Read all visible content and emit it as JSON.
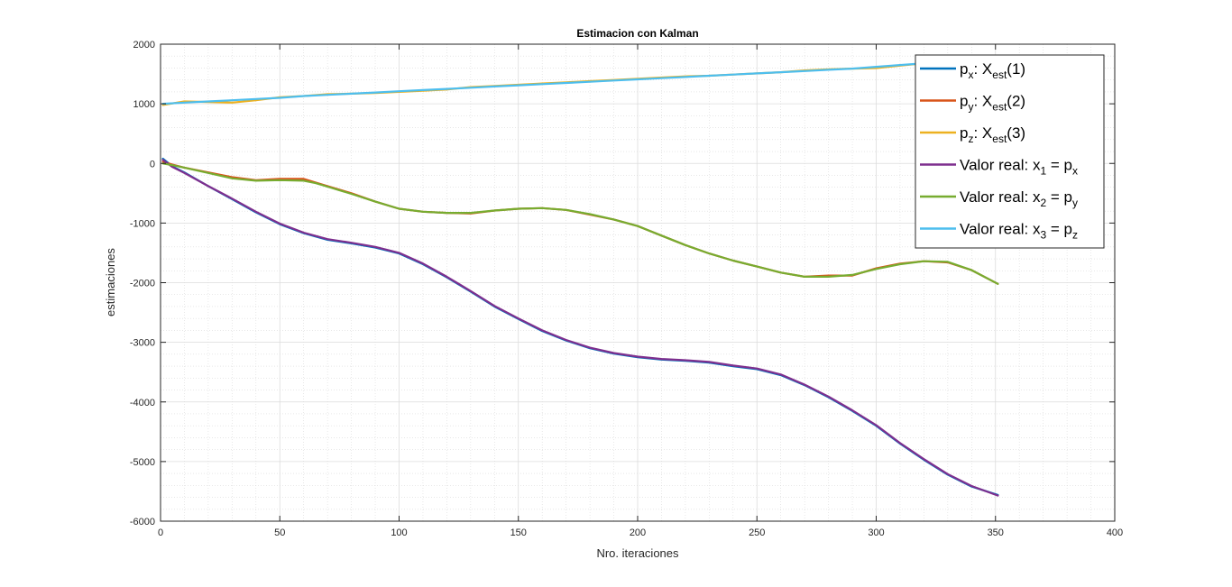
{
  "chart_data": {
    "type": "line",
    "title": "Estimacion con Kalman",
    "xlabel": "Nro. iteraciones",
    "ylabel": "estimaciones",
    "xlim": [
      0,
      400
    ],
    "ylim": [
      -6000,
      2000
    ],
    "xticks": [
      0,
      50,
      100,
      150,
      200,
      250,
      300,
      350,
      400
    ],
    "yticks": [
      -6000,
      -5000,
      -4000,
      -3000,
      -2000,
      -1000,
      0,
      1000,
      2000
    ],
    "grid": true,
    "minor_grid": true,
    "legend_position": "top-right",
    "series": [
      {
        "id": "px_est",
        "legend": {
          "main": "p",
          "sub": "x",
          "rest": ": X",
          "sub2": "est",
          "tail": "(1)"
        },
        "color": "#0072BD",
        "x": [
          1,
          5,
          10,
          20,
          30,
          40,
          50,
          60,
          70,
          80,
          90,
          100,
          110,
          120,
          130,
          140,
          150,
          160,
          170,
          180,
          190,
          200,
          210,
          220,
          230,
          240,
          250,
          260,
          270,
          280,
          290,
          300,
          310,
          320,
          330,
          340,
          351
        ],
        "y": [
          80,
          -50,
          -150,
          -380,
          -600,
          -820,
          -1020,
          -1170,
          -1280,
          -1340,
          -1410,
          -1510,
          -1690,
          -1910,
          -2150,
          -2400,
          -2610,
          -2810,
          -2970,
          -3100,
          -3190,
          -3250,
          -3290,
          -3310,
          -3340,
          -3400,
          -3450,
          -3550,
          -3720,
          -3920,
          -4150,
          -4400,
          -4700,
          -4970,
          -5220,
          -5420,
          -5560
        ]
      },
      {
        "id": "py_est",
        "legend": {
          "main": "p",
          "sub": "y",
          "rest": ": X",
          "sub2": "est",
          "tail": "(2)"
        },
        "color": "#D95319",
        "x": [
          1,
          5,
          10,
          20,
          30,
          40,
          50,
          60,
          65,
          70,
          80,
          90,
          100,
          110,
          120,
          130,
          140,
          150,
          160,
          170,
          180,
          190,
          200,
          210,
          220,
          230,
          240,
          250,
          260,
          270,
          280,
          290,
          300,
          310,
          320,
          330,
          340,
          351
        ],
        "y": [
          30,
          -20,
          -70,
          -150,
          -230,
          -280,
          -260,
          -260,
          -320,
          -380,
          -500,
          -640,
          -760,
          -810,
          -830,
          -840,
          -790,
          -760,
          -750,
          -780,
          -860,
          -940,
          -1050,
          -1210,
          -1370,
          -1510,
          -1630,
          -1730,
          -1830,
          -1900,
          -1880,
          -1880,
          -1760,
          -1680,
          -1640,
          -1660,
          -1790,
          -2020
        ]
      },
      {
        "id": "pz_est",
        "legend": {
          "main": "p",
          "sub": "z",
          "rest": ": X",
          "sub2": "est",
          "tail": "(3)"
        },
        "color": "#EDB120",
        "x": [
          1,
          10,
          20,
          30,
          40,
          50,
          60,
          70,
          80,
          90,
          100,
          110,
          120,
          130,
          140,
          150,
          160,
          170,
          180,
          190,
          200,
          210,
          220,
          230,
          240,
          250,
          260,
          270,
          280,
          290,
          300,
          310,
          320
        ],
        "y": [
          980,
          1040,
          1030,
          1020,
          1060,
          1110,
          1130,
          1160,
          1170,
          1180,
          1200,
          1220,
          1240,
          1280,
          1300,
          1320,
          1340,
          1360,
          1380,
          1400,
          1420,
          1440,
          1460,
          1470,
          1490,
          1510,
          1530,
          1560,
          1580,
          1590,
          1600,
          1640,
          1680
        ]
      },
      {
        "id": "x1_real",
        "legend": {
          "main": "Valor real: x",
          "sub": "1",
          "rest": " = p",
          "sub2": "x",
          "tail": ""
        },
        "color": "#7E2F8E",
        "x": [
          1,
          5,
          10,
          20,
          30,
          40,
          50,
          60,
          70,
          80,
          90,
          100,
          110,
          120,
          130,
          140,
          150,
          160,
          170,
          180,
          190,
          200,
          210,
          220,
          230,
          240,
          250,
          260,
          270,
          280,
          290,
          300,
          310,
          320,
          330,
          340,
          351
        ],
        "y": [
          60,
          -60,
          -160,
          -380,
          -590,
          -810,
          -1010,
          -1160,
          -1270,
          -1330,
          -1400,
          -1500,
          -1680,
          -1900,
          -2140,
          -2390,
          -2600,
          -2800,
          -2960,
          -3090,
          -3180,
          -3240,
          -3280,
          -3300,
          -3330,
          -3390,
          -3440,
          -3540,
          -3710,
          -3910,
          -4140,
          -4390,
          -4690,
          -4960,
          -5210,
          -5410,
          -5570
        ]
      },
      {
        "id": "x2_real",
        "legend": {
          "main": "Valor real: x",
          "sub": "2",
          "rest": " = p",
          "sub2": "y",
          "tail": ""
        },
        "color": "#77AC30",
        "x": [
          1,
          5,
          10,
          20,
          30,
          40,
          50,
          60,
          65,
          70,
          80,
          90,
          100,
          110,
          120,
          130,
          140,
          150,
          160,
          170,
          180,
          190,
          200,
          210,
          220,
          230,
          240,
          250,
          260,
          270,
          280,
          290,
          300,
          310,
          320,
          330,
          340,
          351
        ],
        "y": [
          0,
          -30,
          -70,
          -160,
          -250,
          -290,
          -280,
          -290,
          -330,
          -390,
          -510,
          -640,
          -760,
          -810,
          -830,
          -830,
          -790,
          -760,
          -750,
          -780,
          -850,
          -940,
          -1050,
          -1210,
          -1370,
          -1510,
          -1630,
          -1730,
          -1830,
          -1900,
          -1900,
          -1870,
          -1770,
          -1690,
          -1640,
          -1650,
          -1790,
          -2020
        ]
      },
      {
        "id": "x3_real",
        "legend": {
          "main": "Valor real: x",
          "sub": "3",
          "rest": " = p",
          "sub2": "z",
          "tail": ""
        },
        "color": "#4DBEEE",
        "x": [
          1,
          10,
          20,
          30,
          40,
          50,
          60,
          70,
          80,
          90,
          100,
          110,
          120,
          130,
          140,
          150,
          160,
          170,
          180,
          190,
          200,
          210,
          220,
          230,
          240,
          250,
          260,
          270,
          280,
          290,
          300,
          310,
          320
        ],
        "y": [
          1000,
          1020,
          1040,
          1060,
          1080,
          1100,
          1130,
          1150,
          1170,
          1190,
          1210,
          1230,
          1250,
          1270,
          1290,
          1310,
          1330,
          1350,
          1370,
          1390,
          1410,
          1430,
          1450,
          1470,
          1490,
          1510,
          1530,
          1550,
          1570,
          1590,
          1620,
          1650,
          1680
        ]
      }
    ]
  }
}
